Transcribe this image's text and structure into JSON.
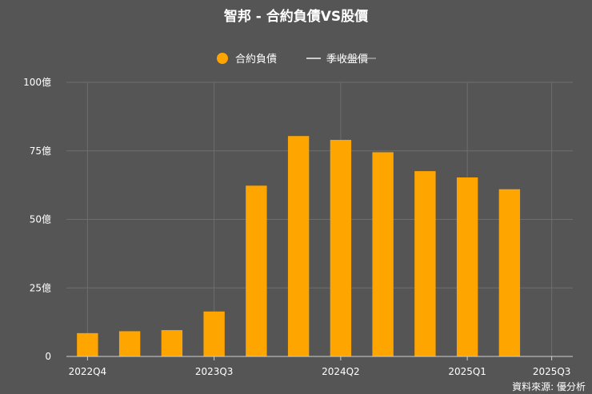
{
  "chart_data": {
    "type": "bar",
    "title": "智邦 - 合約負債VS股價",
    "legend": {
      "placement": "top-center",
      "items": [
        {
          "name": "合約負債",
          "symbol": "circle",
          "color": "#ffa500",
          "hidden": false
        },
        {
          "name": "季收盤價",
          "symbol": "line",
          "color": "#cccccc",
          "hidden": true
        }
      ]
    },
    "x_tick_labels": [
      "2022Q4",
      "2023Q3",
      "2024Q2",
      "2025Q1",
      "2025Q3"
    ],
    "x_tick_index": [
      0,
      3,
      6,
      9,
      11
    ],
    "categories_count": 12,
    "y_ticks": [
      {
        "value": 0,
        "label": "0"
      },
      {
        "value": 25,
        "label": "25億"
      },
      {
        "value": 50,
        "label": "50億"
      },
      {
        "value": 75,
        "label": "75億"
      },
      {
        "value": 100,
        "label": "100億"
      }
    ],
    "ylim": [
      0,
      100
    ],
    "grid": true,
    "series": [
      {
        "name": "合約負債",
        "color": "#ffa500",
        "values": [
          8.5,
          9.2,
          9.6,
          16.4,
          62.3,
          80.4,
          79.0,
          74.5,
          67.6,
          65.3,
          61.0,
          null
        ]
      }
    ],
    "source": "資料來源: 優分析"
  }
}
